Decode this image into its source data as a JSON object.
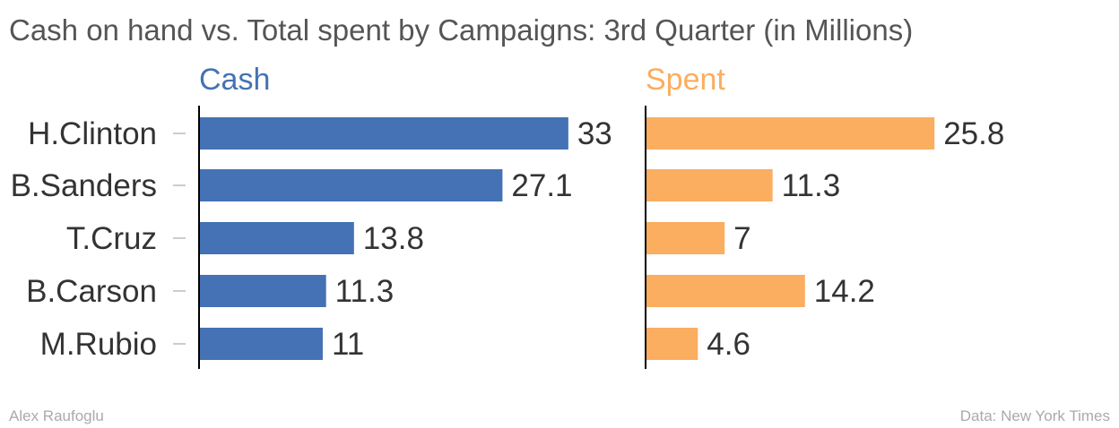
{
  "title": "Cash on hand vs. Total spent by Campaigns: 3rd Quarter (in Millions)",
  "credit": "Alex Raufoglu",
  "source": "Data: New York Times",
  "chart_data": {
    "type": "bar",
    "orientation": "horizontal",
    "layout": "side-by-side panels",
    "categories": [
      "H.Clinton",
      "B.Sanders",
      "T.Cruz",
      "B.Carson",
      "M.Rubio"
    ],
    "series": [
      {
        "name": "Cash",
        "color": "#4472b4",
        "values": [
          33,
          27.1,
          13.8,
          11.3,
          11
        ],
        "value_labels": [
          "33",
          "27.1",
          "13.8",
          "11.3",
          "11"
        ]
      },
      {
        "name": "Spent",
        "color": "#fbad60",
        "values": [
          25.8,
          11.3,
          7,
          14.2,
          4.6
        ],
        "value_labels": [
          "25.8",
          "11.3",
          "7",
          "14.2",
          "4.6"
        ]
      }
    ],
    "xlim": [
      0,
      33
    ],
    "grid": false,
    "data_labels": true
  }
}
